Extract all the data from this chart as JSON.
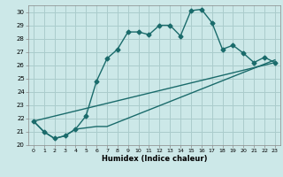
{
  "title": "",
  "xlabel": "Humidex (Indice chaleur)",
  "ylabel": "",
  "background_color": "#cce8e8",
  "grid_color": "#aacccc",
  "line_color": "#1a6b6b",
  "xlim": [
    -0.5,
    23.5
  ],
  "ylim": [
    20,
    30.5
  ],
  "xticks": [
    0,
    1,
    2,
    3,
    4,
    5,
    6,
    7,
    8,
    9,
    10,
    11,
    12,
    13,
    14,
    15,
    16,
    17,
    18,
    19,
    20,
    21,
    22,
    23
  ],
  "yticks": [
    20,
    21,
    22,
    23,
    24,
    25,
    26,
    27,
    28,
    29,
    30
  ],
  "line1_x": [
    0,
    1,
    2,
    3,
    4,
    5,
    6,
    7,
    8,
    9,
    10,
    11,
    12,
    13,
    14,
    15,
    16,
    17,
    18,
    19,
    20,
    21,
    22,
    23
  ],
  "line1_y": [
    21.8,
    21.0,
    20.5,
    20.7,
    21.2,
    22.2,
    24.8,
    26.5,
    27.2,
    28.5,
    28.5,
    28.3,
    29.0,
    29.0,
    28.2,
    30.1,
    30.2,
    29.2,
    27.2,
    27.5,
    26.9,
    26.2,
    26.6,
    26.2
  ],
  "line2_x": [
    0,
    1,
    2,
    3,
    4,
    5,
    6,
    7,
    23
  ],
  "line2_y": [
    21.8,
    21.0,
    20.5,
    20.7,
    21.2,
    21.3,
    21.4,
    21.4,
    26.4
  ],
  "line3_x": [
    0,
    23
  ],
  "line3_y": [
    21.8,
    26.2
  ],
  "marker": "D",
  "marker_size": 2.5,
  "line_width": 1.0
}
